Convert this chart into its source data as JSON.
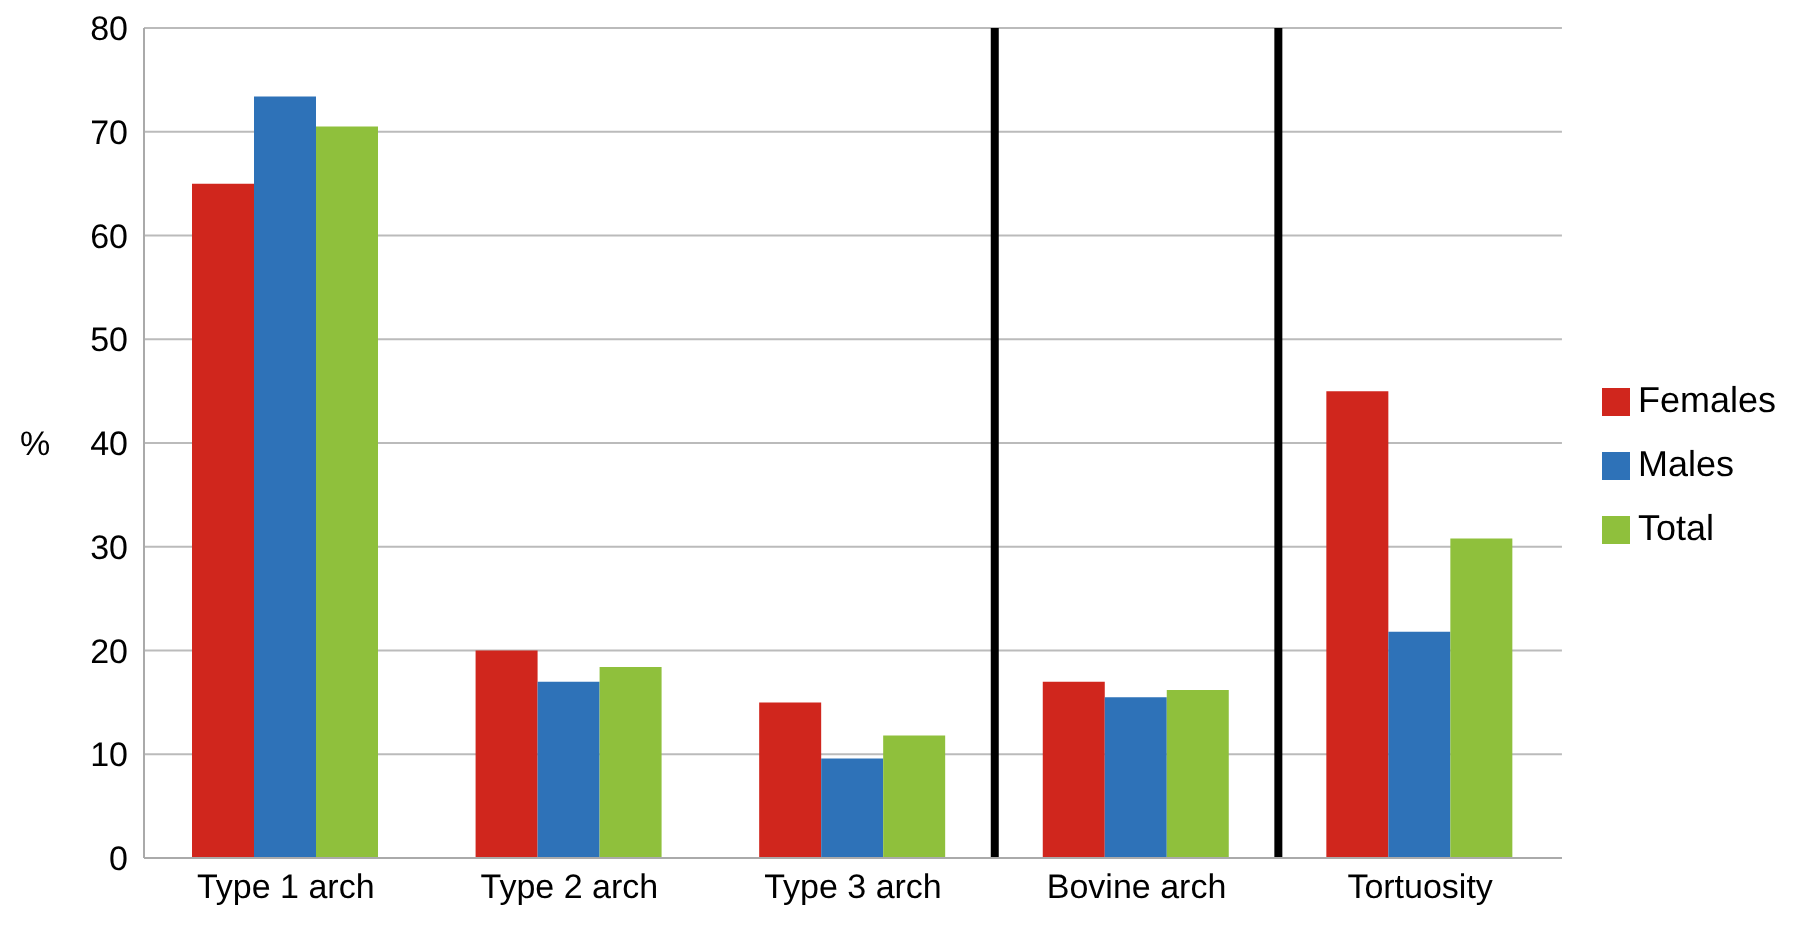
{
  "chart_data": {
    "type": "bar",
    "ylabel": "%",
    "categories": [
      "Type 1 arch",
      "Type 2 arch",
      "Type 3 arch",
      "Bovine arch",
      "Tortuosity"
    ],
    "series": [
      {
        "name": "Females",
        "color": "#d0261d",
        "values": [
          65,
          20,
          15,
          17,
          45
        ]
      },
      {
        "name": "Males",
        "color": "#2e72b8",
        "values": [
          73.4,
          17,
          9.6,
          15.5,
          21.8
        ]
      },
      {
        "name": "Total",
        "color": "#8fc03c",
        "values": [
          70.5,
          18.4,
          11.8,
          16.2,
          30.8
        ]
      }
    ],
    "ylim": [
      0,
      80
    ],
    "yticks": [
      0,
      10,
      20,
      30,
      40,
      50,
      60,
      70,
      80
    ],
    "grid": "y",
    "legend": "right"
  }
}
